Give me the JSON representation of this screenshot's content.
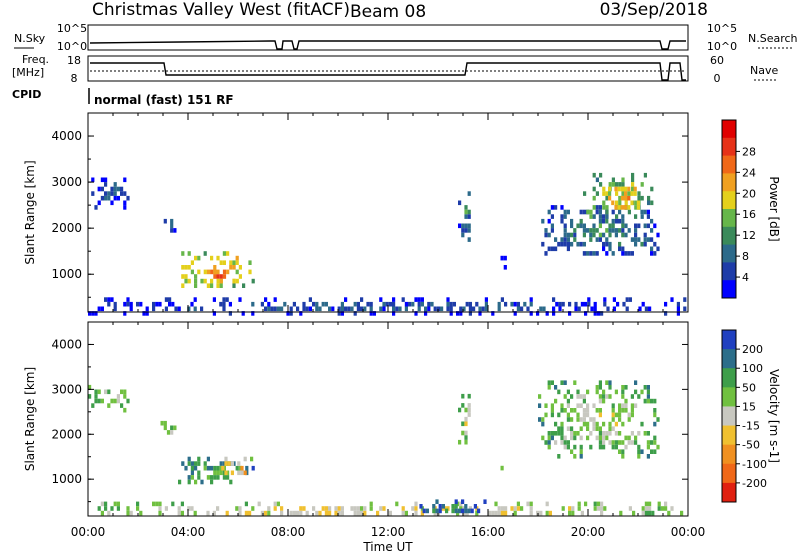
{
  "header": {
    "station": "Christmas Valley West (fitACF)",
    "beam": "Beam 08",
    "date": "03/Sep/2018"
  },
  "strips": {
    "nsky_label": "N.Sky",
    "nsearch_label": "N.Search",
    "scale_top": "10^5",
    "scale_bottom": "10^0",
    "freq_label": "Freq.",
    "freq_unit": "[MHz]",
    "freq_ticks": [
      "18",
      "8"
    ],
    "nave_label": "Nave",
    "nave_ticks": [
      "60",
      "0"
    ],
    "cpid_label": "CPID",
    "cpid_value": "normal (fast) 151 RF"
  },
  "chart_data": [
    {
      "type": "heatmap",
      "ylabel": "Slant Range [km]",
      "xlabel": "Time UT",
      "x_ticks": [
        "00:00",
        "04:00",
        "08:00",
        "12:00",
        "16:00",
        "20:00",
        "00:00"
      ],
      "y_ticks": [
        "1000",
        "2000",
        "3000",
        "4000"
      ],
      "ylim": [
        180,
        4500
      ],
      "xlim_hours": [
        0,
        24
      ],
      "colorbar": {
        "label": "Power [dB]",
        "ticks": [
          "4",
          "8",
          "12",
          "16",
          "20",
          "24",
          "28"
        ],
        "colors": [
          "#0000ff",
          "#1e3ca8",
          "#2c6a8a",
          "#3a8a5a",
          "#66b64a",
          "#e4d01c",
          "#f0a020",
          "#f06818",
          "#e63218",
          "#e00000"
        ]
      },
      "regions": [
        {
          "t": [
            0.0,
            1.6
          ],
          "r": [
            2500,
            3100
          ],
          "level": 2
        },
        {
          "t": [
            2.9,
            3.5
          ],
          "r": [
            2000,
            2400
          ],
          "level": 3
        },
        {
          "t": [
            3.6,
            6.6
          ],
          "r": [
            800,
            1500
          ],
          "level": 6
        },
        {
          "t": [
            4.5,
            6.0
          ],
          "r": [
            900,
            1200
          ],
          "level": 8
        },
        {
          "t": [
            14.8,
            15.3
          ],
          "r": [
            1800,
            2900
          ],
          "level": 3
        },
        {
          "t": [
            16.5,
            16.8
          ],
          "r": [
            1000,
            1400
          ],
          "level": 1
        },
        {
          "t": [
            18.0,
            22.8
          ],
          "r": [
            1500,
            2500
          ],
          "level": 3
        },
        {
          "t": [
            19.8,
            22.5
          ],
          "r": [
            2300,
            3200
          ],
          "level": 5
        },
        {
          "t": [
            20.8,
            22.0
          ],
          "r": [
            2400,
            3000
          ],
          "level": 7
        },
        {
          "t": [
            0.0,
            24.0
          ],
          "r": [
            200,
            500
          ],
          "level": 2
        }
      ]
    },
    {
      "type": "heatmap",
      "ylabel": "Slant Range [km]",
      "xlabel": "Time UT",
      "x_ticks": [
        "00:00",
        "04:00",
        "08:00",
        "12:00",
        "16:00",
        "20:00",
        "00:00"
      ],
      "y_ticks": [
        "1000",
        "2000",
        "3000",
        "4000"
      ],
      "ylim": [
        180,
        4500
      ],
      "xlim_hours": [
        0,
        24
      ],
      "colorbar": {
        "label": "Velocity [m s-1]",
        "ticks": [
          "200",
          "100",
          "50",
          "15",
          "-15",
          "-50",
          "-100",
          "-200"
        ],
        "colors": [
          "#2040c0",
          "#2c6e8a",
          "#3e9e4a",
          "#70c040",
          "#c8c8c0",
          "#f0c030",
          "#f09020",
          "#f06818",
          "#e02010"
        ]
      },
      "regions": [
        {
          "t": [
            0.0,
            1.6
          ],
          "r": [
            2500,
            3100
          ],
          "level": 4
        },
        {
          "t": [
            2.9,
            3.5
          ],
          "r": [
            2000,
            2400
          ],
          "level": 4
        },
        {
          "t": [
            3.6,
            6.6
          ],
          "r": [
            900,
            1500
          ],
          "level": 3
        },
        {
          "t": [
            5.2,
            6.6
          ],
          "r": [
            1100,
            1500
          ],
          "level": 6
        },
        {
          "t": [
            14.8,
            15.3
          ],
          "r": [
            1800,
            2900
          ],
          "level": 4
        },
        {
          "t": [
            16.5,
            16.8
          ],
          "r": [
            1100,
            1400
          ],
          "level": 4
        },
        {
          "t": [
            18.0,
            22.8
          ],
          "r": [
            1500,
            3200
          ],
          "level": 4
        },
        {
          "t": [
            0.0,
            24.0
          ],
          "r": [
            200,
            500
          ],
          "level": 5
        },
        {
          "t": [
            13.0,
            16.0
          ],
          "r": [
            250,
            550
          ],
          "level": 2
        }
      ]
    }
  ]
}
